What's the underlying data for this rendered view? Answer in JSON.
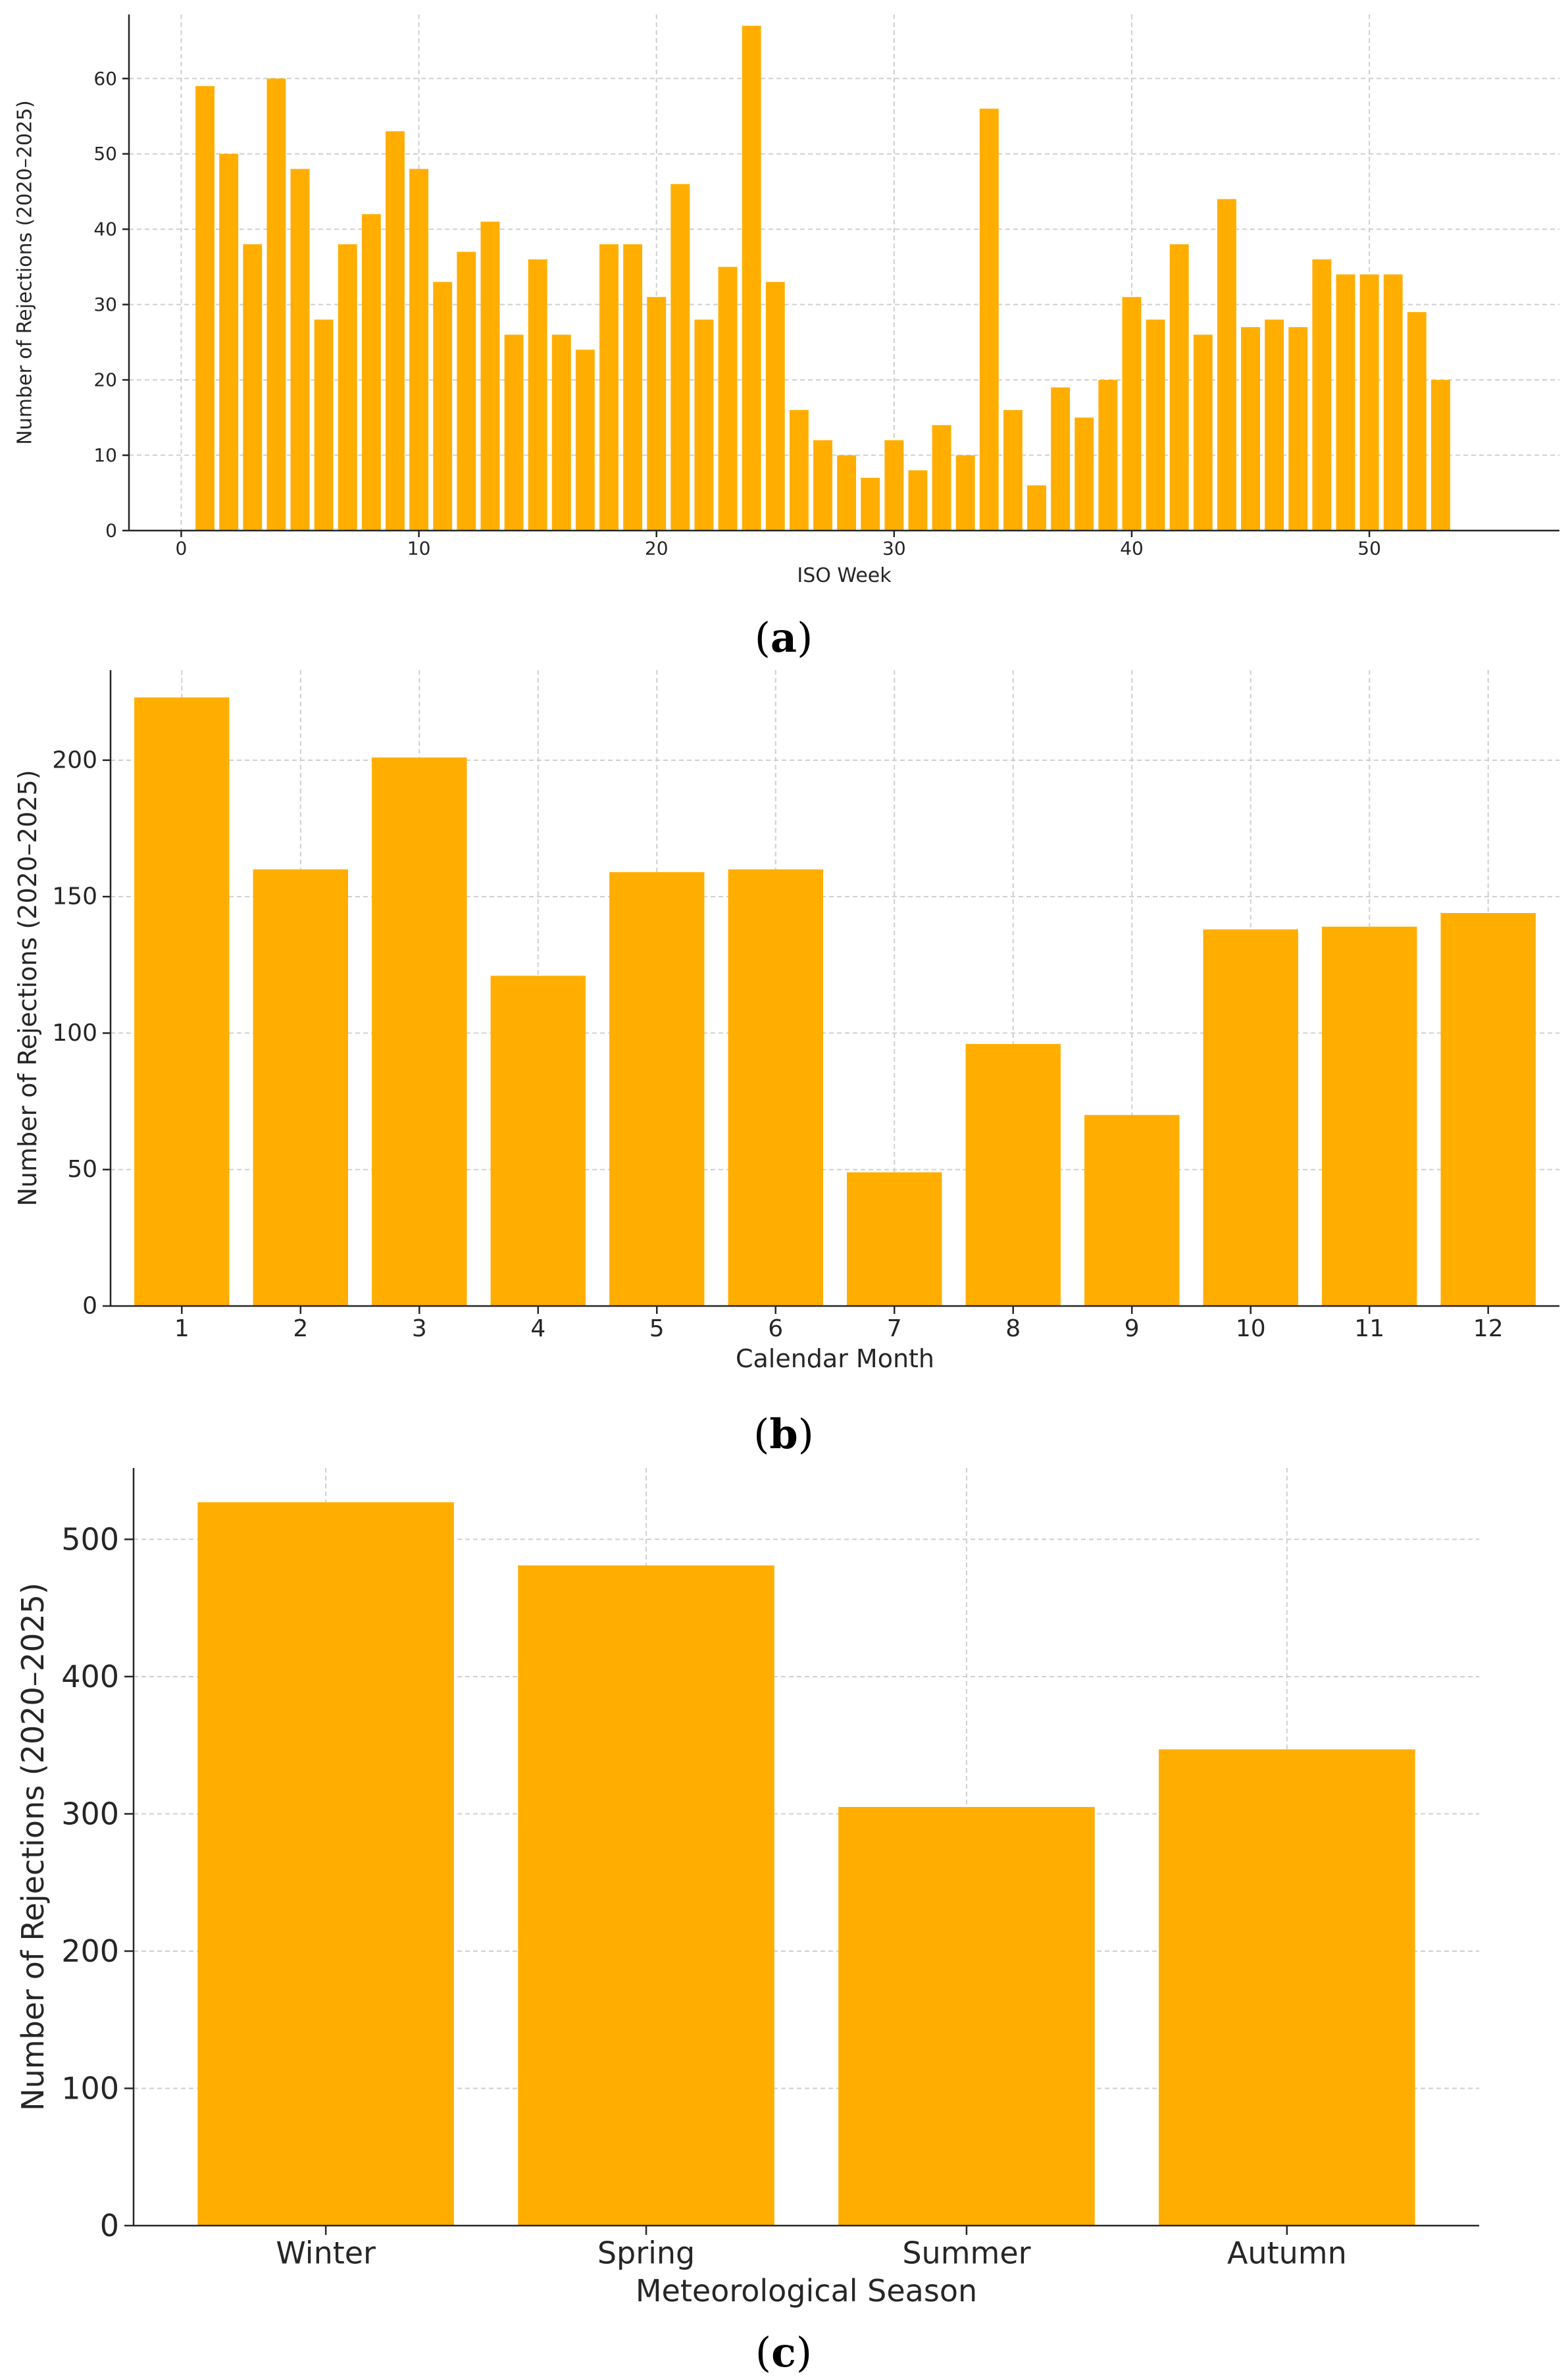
{
  "figure": {
    "bar_color": "#FFAE00",
    "grid_color": "#cfcfcf",
    "axis_color": "#262626"
  },
  "chart_data": [
    {
      "type": "bar",
      "panel_label": "a",
      "title": "",
      "xlabel": "ISO Week",
      "ylabel": "Number of Rejections (2020–2025)",
      "x": [
        1,
        2,
        3,
        4,
        5,
        6,
        7,
        8,
        9,
        10,
        11,
        12,
        13,
        14,
        15,
        16,
        17,
        18,
        19,
        20,
        21,
        22,
        23,
        24,
        25,
        26,
        27,
        28,
        29,
        30,
        31,
        32,
        33,
        34,
        35,
        36,
        37,
        38,
        39,
        40,
        41,
        42,
        43,
        44,
        45,
        46,
        47,
        48,
        49,
        50,
        51,
        52,
        53
      ],
      "values": [
        59,
        50,
        38,
        60,
        48,
        28,
        38,
        42,
        53,
        48,
        33,
        37,
        41,
        26,
        36,
        26,
        24,
        38,
        38,
        31,
        46,
        28,
        35,
        67,
        33,
        16,
        12,
        10,
        7,
        12,
        8,
        14,
        10,
        56,
        16,
        6,
        19,
        15,
        20,
        31,
        28,
        38,
        26,
        44,
        27,
        28,
        27,
        36,
        34,
        34,
        34,
        29,
        20
      ],
      "xlim": [
        -2.2,
        58
      ],
      "ylim": [
        0,
        68.5
      ],
      "xticks": [
        0,
        10,
        20,
        30,
        40,
        50
      ],
      "xtick_labels": [
        "0",
        "10",
        "20",
        "30",
        "40",
        "50"
      ],
      "yticks": [
        0,
        10,
        20,
        30,
        40,
        50,
        60
      ],
      "ytick_labels": [
        "0",
        "10",
        "20",
        "30",
        "40",
        "50",
        "60"
      ],
      "grid": true
    },
    {
      "type": "bar",
      "panel_label": "b",
      "title": "",
      "xlabel": "Calendar Month",
      "ylabel": "Number of Rejections (2020–2025)",
      "categories": [
        "1",
        "2",
        "3",
        "4",
        "5",
        "6",
        "7",
        "8",
        "9",
        "10",
        "11",
        "12"
      ],
      "values": [
        223,
        160,
        201,
        121,
        159,
        160,
        49,
        96,
        70,
        138,
        139,
        144
      ],
      "ylim": [
        0,
        233
      ],
      "yticks": [
        0,
        50,
        100,
        150,
        200
      ],
      "ytick_labels": [
        "0",
        "50",
        "100",
        "150",
        "200"
      ],
      "grid": true
    },
    {
      "type": "bar",
      "panel_label": "c",
      "title": "",
      "xlabel": "Meteorological Season",
      "ylabel": "Number of Rejections (2020–2025)",
      "categories": [
        "Winter",
        "Spring",
        "Summer",
        "Autumn"
      ],
      "values": [
        527,
        481,
        305,
        347
      ],
      "ylim": [
        0,
        552
      ],
      "yticks": [
        0,
        100,
        200,
        300,
        400,
        500
      ],
      "ytick_labels": [
        "0",
        "100",
        "200",
        "300",
        "400",
        "500"
      ],
      "grid": true
    }
  ]
}
